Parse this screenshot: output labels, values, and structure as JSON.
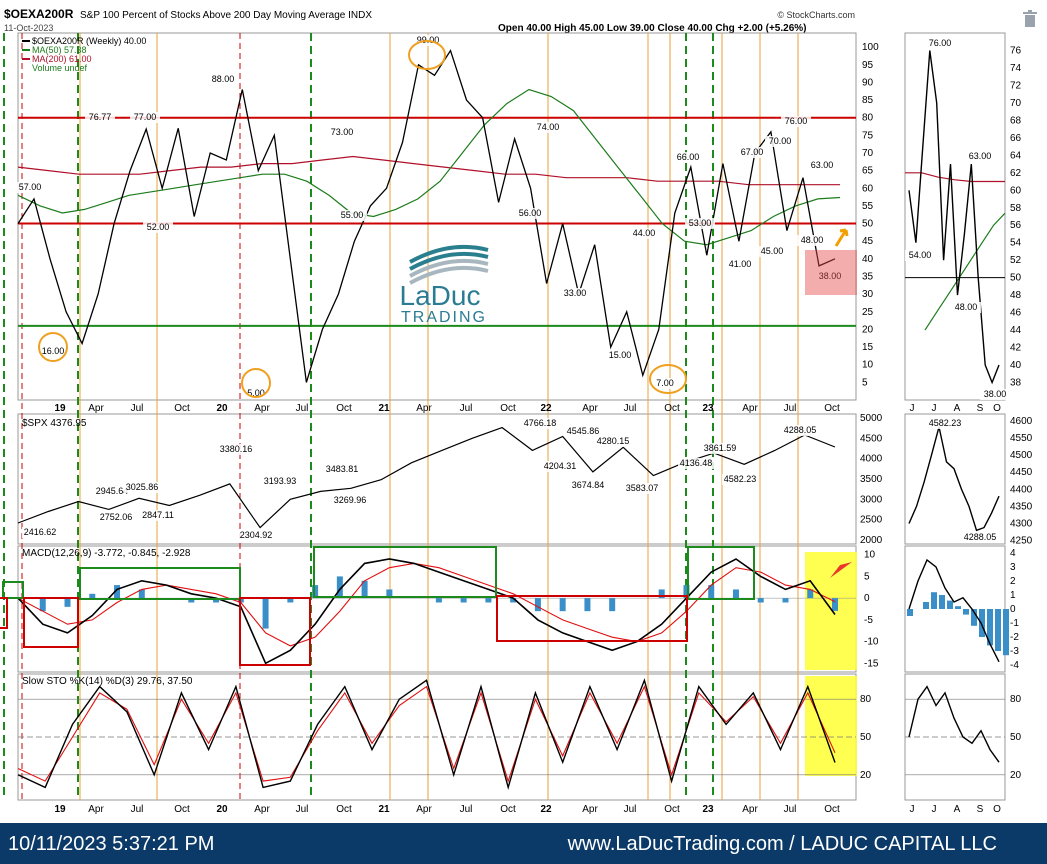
{
  "header": {
    "symbol": "$OEXA200R",
    "name": "S&P 100 Percent of Stocks Above 200 Day Moving Average",
    "exchange": "INDX",
    "date": "11-Oct-2023",
    "brand": "© StockCharts.com",
    "ohlc": "Open 40.00  High 45.00  Low 39.00  Close 40.00  Chg +2.00 (+5.26%)",
    "legend": [
      "$OEXA200R (Weekly) 40.00",
      "MA(50) 57.38",
      "MA(200) 61.00",
      "Volume undef"
    ]
  },
  "logo": {
    "line1": "LaDuc",
    "line2": "TRADING"
  },
  "footer": {
    "timestamp": "10/11/2023 5:37:21 PM",
    "site": "www.LaDucTrading.com / LADUC CAPITAL LLC"
  },
  "colors": {
    "price": "#000000",
    "ma50": "#1c7c1c",
    "ma200": "#b0102a",
    "hline_red": "#cc0000",
    "hline_green": "#1d8a1d",
    "highlight": "#ffff33",
    "footer": "#0b3a68",
    "hist": "#3a8fc8"
  },
  "chart_data": [
    {
      "type": "line",
      "title": "$OEXA200R S&P 100 Percent of Stocks Above 200 Day Moving Average INDX",
      "x_ticks": [
        "19",
        "Apr",
        "Jul",
        "Oct",
        "20",
        "Apr",
        "Jul",
        "Oct",
        "21",
        "Apr",
        "Jul",
        "Oct",
        "22",
        "Apr",
        "Jul",
        "Oct",
        "23",
        "Apr",
        "Jul",
        "Oct"
      ],
      "y_ticks": [
        5,
        10,
        15,
        20,
        25,
        30,
        35,
        40,
        45,
        50,
        55,
        60,
        65,
        70,
        75,
        80,
        85,
        90,
        95,
        100
      ],
      "ylim": [
        0,
        104
      ],
      "horizontal_lines": [
        {
          "value": 80,
          "color": "red"
        },
        {
          "value": 50,
          "color": "red"
        },
        {
          "value": 21,
          "color": "green"
        }
      ],
      "series": [
        {
          "name": "$OEXA200R (Weekly) 40.00",
          "values": [
            50,
            57,
            40,
            25,
            16,
            30,
            50,
            65,
            76.77,
            60,
            77,
            52,
            70,
            68,
            88,
            65,
            75,
            40,
            5,
            20,
            30,
            45,
            55,
            60,
            73,
            95,
            92,
            99,
            85,
            80,
            56,
            74,
            60,
            33,
            50,
            30,
            44,
            15,
            25,
            7,
            20,
            53,
            66,
            41,
            67,
            45,
            70,
            76,
            48,
            63,
            38,
            40
          ]
        },
        {
          "name": "MA(50) 57.38",
          "values": [
            58,
            55,
            53,
            54,
            56,
            58,
            59,
            60,
            61,
            62,
            63,
            64,
            64,
            62,
            58,
            53,
            52,
            54,
            57,
            62,
            70,
            78,
            84,
            88,
            86,
            82,
            74,
            66,
            58,
            50,
            45,
            44,
            46,
            48,
            52,
            55,
            57,
            57.38
          ]
        },
        {
          "name": "MA(200) 61.00",
          "values": [
            66,
            65,
            64,
            64,
            64,
            65,
            66,
            66,
            67,
            67,
            68,
            69,
            68,
            67,
            66,
            65,
            64,
            64,
            63,
            63,
            63,
            62,
            62,
            62,
            61,
            61,
            61,
            61.0
          ]
        }
      ],
      "annotations": [
        "57.00",
        "76.77",
        "77.00",
        "52.00",
        "88.00",
        "16.00",
        "5.00",
        "73.00",
        "55.00",
        "99.00",
        "74.00",
        "56.00",
        "33.00",
        "44.00",
        "15.00",
        "7.00",
        "53.00",
        "66.00",
        "41.00",
        "45.00",
        "67.00",
        "70.00",
        "76.00",
        "63.00",
        "48.00",
        "38.00"
      ]
    },
    {
      "type": "line",
      "title": "$SPX 4376.95",
      "y_ticks": [
        2000,
        2500,
        3000,
        3500,
        4000,
        4500,
        5000
      ],
      "ylim": [
        1900,
        5100
      ],
      "series": [
        {
          "name": "$SPX 4376.95",
          "values": [
            2416.62,
            2700,
            2945.64,
            2752.06,
            3025.86,
            2847.11,
            3100,
            3380.16,
            2304.92,
            3000,
            3193.93,
            3269.96,
            3483.81,
            3900,
            4200,
            4500,
            4766.18,
            4204.31,
            4545.86,
            3674.84,
            4280.15,
            3583.07,
            3900,
            4136.48,
            3861.59,
            4200,
            4582.23,
            4288.05
          ]
        }
      ],
      "annotations": [
        "2416.62",
        "2945.64",
        "2752.06",
        "3025.86",
        "2847.11",
        "3380.16",
        "2304.92",
        "3193.93",
        "3269.96",
        "3483.81",
        "4766.18",
        "4204.31",
        "4545.86",
        "3674.84",
        "4280.15",
        "3583.07",
        "4136.48",
        "3861.59",
        "4582.23",
        "4288.05"
      ]
    },
    {
      "type": "line",
      "title": "MACD(12,26,9) -3.772, -0.845, -2.928",
      "y_ticks": [
        -15,
        -10,
        -5,
        0,
        5,
        10
      ],
      "ylim": [
        -17,
        12
      ],
      "series": [
        {
          "name": "MACD",
          "values": [
            0,
            -6,
            -8,
            -4,
            2,
            4,
            3,
            1,
            0,
            -2,
            -15,
            -12,
            -6,
            2,
            8,
            9,
            8,
            6,
            4,
            2,
            0,
            -5,
            -8,
            -10,
            -12,
            -10,
            -6,
            0,
            6,
            9,
            5,
            2,
            4,
            -3.772
          ]
        },
        {
          "name": "Signal",
          "values": [
            0,
            -3,
            -6,
            -5,
            -1,
            2,
            3,
            2,
            1,
            -1,
            -8,
            -11,
            -9,
            -3,
            4,
            7,
            8,
            7,
            5,
            3,
            1,
            -2,
            -5,
            -7,
            -9,
            -10,
            -8,
            -3,
            3,
            7,
            6,
            3,
            2,
            -0.845
          ]
        },
        {
          "name": "Histogram",
          "values": [
            0,
            -3,
            -2,
            1,
            3,
            2,
            0,
            -1,
            -1,
            -1,
            -7,
            -1,
            3,
            5,
            4,
            2,
            0,
            -1,
            -1,
            -1,
            -1,
            -3,
            -3,
            -3,
            -3,
            0,
            2,
            3,
            3,
            2,
            -1,
            -1,
            2,
            -2.928
          ]
        }
      ]
    },
    {
      "type": "line",
      "title": "Slow STO %K(14) %D(3) 29.76, 37.50",
      "y_ticks": [
        20,
        50,
        80
      ],
      "ylim": [
        0,
        100
      ],
      "series": [
        {
          "name": "%K",
          "values": [
            20,
            10,
            60,
            90,
            70,
            20,
            85,
            40,
            90,
            10,
            15,
            60,
            90,
            40,
            80,
            95,
            20,
            90,
            10,
            85,
            30,
            90,
            40,
            95,
            15,
            90,
            60,
            85,
            40,
            90,
            29.76
          ]
        },
        {
          "name": "%D",
          "values": [
            25,
            15,
            50,
            85,
            72,
            28,
            80,
            45,
            85,
            15,
            18,
            55,
            85,
            45,
            75,
            90,
            25,
            85,
            15,
            80,
            35,
            85,
            45,
            90,
            20,
            85,
            62,
            82,
            45,
            85,
            37.5
          ]
        }
      ]
    },
    {
      "type": "line",
      "title": "",
      "x_ticks": [
        "J",
        "J",
        "A",
        "S",
        "O"
      ],
      "panels": [
        {
          "y_ticks": [
            38,
            40,
            42,
            44,
            46,
            48,
            50,
            52,
            54,
            56,
            58,
            60,
            62,
            64,
            66,
            68,
            70,
            72,
            74,
            76
          ],
          "ylim": [
            36,
            78
          ],
          "series": [
            {
              "values": [
                60,
                54,
                65,
                76,
                70,
                52,
                63,
                48,
                55,
                63,
                50,
                40,
                38,
                40
              ]
            }
          ],
          "annotations": [
            "76.00",
            "54.00",
            "63.00",
            "48.00",
            "38.00"
          ]
        },
        {
          "y_ticks": [
            4250,
            4300,
            4350,
            4400,
            4450,
            4500,
            4550,
            4600
          ],
          "ylim": [
            4240,
            4620
          ],
          "series": [
            {
              "values": [
                4300,
                4350,
                4420,
                4500,
                4582.23,
                4480,
                4460,
                4400,
                4350,
                4280,
                4288.05,
                4330,
                4380
              ]
            }
          ],
          "annotations": [
            "4582.23",
            "4288.05"
          ]
        },
        {
          "y_ticks": [
            -4,
            -3,
            -2,
            -1,
            0,
            1,
            2,
            3,
            4
          ],
          "ylim": [
            -4.5,
            4.5
          ],
          "series": [
            {
              "values": [
                0,
                2,
                3.5,
                3,
                1.5,
                0.5,
                0.8,
                0,
                -1,
                -2.5,
                -3.772
              ]
            }
          ]
        },
        {
          "y_ticks": [
            20,
            50,
            80
          ],
          "ylim": [
            0,
            100
          ],
          "series": [
            {
              "values": [
                50,
                80,
                90,
                75,
                85,
                65,
                50,
                45,
                55,
                40,
                30
              ]
            }
          ]
        }
      ]
    }
  ]
}
